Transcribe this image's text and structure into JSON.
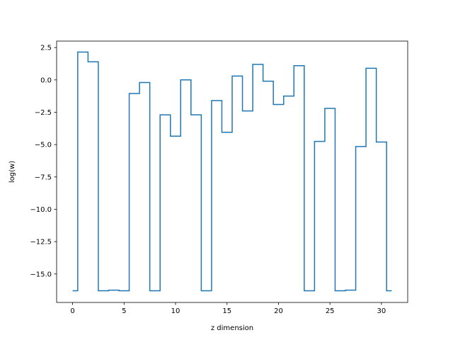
{
  "chart_data": {
    "type": "line",
    "drawstyle": "steps-mid",
    "title": "",
    "xlabel": "z dimension",
    "ylabel": "log(w)",
    "xlim": [
      -1.55,
      32.55
    ],
    "ylim": [
      -17.2,
      3.0
    ],
    "xticks": [
      0,
      5,
      10,
      15,
      20,
      25,
      30
    ],
    "yticks": [
      2.5,
      0.0,
      -2.5,
      -5.0,
      -7.5,
      -10.0,
      -12.5,
      -15.0
    ],
    "ytick_labels": [
      "2.5",
      "0.0",
      "−2.5",
      "−5.0",
      "−7.5",
      "−10.0",
      "−12.5",
      "−15.0"
    ],
    "grid": false,
    "line_color": "#1f77b4",
    "series": [
      {
        "x": [
          0,
          1,
          2,
          3,
          4,
          5,
          6,
          7,
          8,
          9,
          10,
          11,
          12,
          13,
          14,
          15,
          16,
          17,
          18,
          19,
          20,
          21,
          22,
          23,
          24,
          25,
          26,
          27,
          28,
          29,
          30,
          31
        ],
        "values": [
          -16.3,
          2.15,
          1.4,
          -16.3,
          -16.25,
          -16.3,
          -1.05,
          -0.2,
          -16.3,
          -2.7,
          -4.35,
          0.0,
          -2.7,
          -16.3,
          -1.6,
          -4.05,
          0.3,
          -2.4,
          1.2,
          -0.1,
          -1.9,
          -1.25,
          1.1,
          -16.3,
          -4.75,
          -2.2,
          -16.3,
          -16.25,
          -5.15,
          0.9,
          -4.8,
          -16.3
        ]
      }
    ]
  }
}
